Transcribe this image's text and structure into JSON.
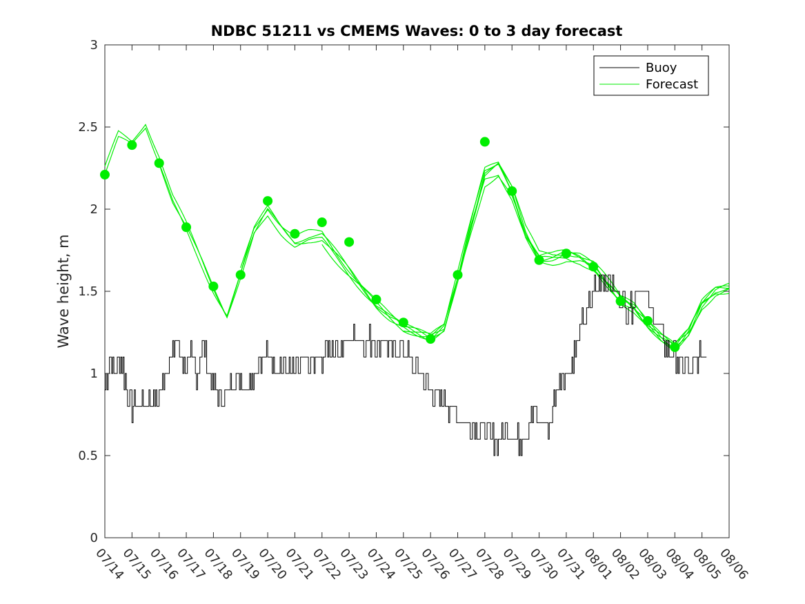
{
  "chart_data": {
    "type": "line",
    "title": "NDBC 51211 vs CMEMS Waves: 0 to 3 day forecast",
    "ylabel": "Wave height, m",
    "xlabel": "",
    "ylim": [
      0,
      3
    ],
    "yticks": [
      "0",
      "0.5",
      "1",
      "1.5",
      "2",
      "2.5",
      "3"
    ],
    "xticks": [
      "07/14",
      "07/15",
      "07/16",
      "07/17",
      "07/18",
      "07/19",
      "07/20",
      "07/21",
      "07/22",
      "07/23",
      "07/24",
      "07/25",
      "07/26",
      "07/27",
      "07/28",
      "07/29",
      "07/30",
      "07/31",
      "08/01",
      "08/02",
      "08/03",
      "08/04",
      "08/05",
      "08/06"
    ],
    "xlim_days": [
      0,
      23
    ],
    "grid": false,
    "legend_position": "top-right",
    "colors": {
      "buoy": "#000000",
      "forecast": "#00ee00"
    },
    "series": [
      {
        "name": "Buoy",
        "x": [
          0,
          0.2,
          0.4,
          0.6,
          0.8,
          1.0,
          1.2,
          1.4,
          1.6,
          1.8,
          2.0,
          2.2,
          2.4,
          2.6,
          2.8,
          3.0,
          3.2,
          3.4,
          3.6,
          3.8,
          4.0,
          4.2,
          4.4,
          4.6,
          4.8,
          5.0,
          5.2,
          5.4,
          5.6,
          5.8,
          6.0,
          6.3,
          6.6,
          7.0,
          7.3,
          7.6,
          8.0,
          8.3,
          8.6,
          9.0,
          9.3,
          9.6,
          10.0,
          10.3,
          10.6,
          11.0,
          11.3,
          11.6,
          12.0,
          12.3,
          12.6,
          13.0,
          13.3,
          13.6,
          14.0,
          14.2,
          14.4,
          14.6,
          14.8,
          15.0,
          15.2,
          15.4,
          15.6,
          15.8,
          16.0,
          16.2,
          16.4,
          16.6,
          16.8,
          17.0,
          17.2,
          17.4,
          17.6,
          17.8,
          18.0,
          18.2,
          18.4,
          18.6,
          18.8,
          19.0,
          19.2,
          19.4,
          19.6,
          19.8,
          20.0,
          20.2,
          20.4,
          20.6,
          20.8,
          21.0,
          21.2,
          21.4,
          21.6,
          21.8,
          22.0,
          22.2
        ],
        "values": [
          0.9,
          1.1,
          1.0,
          1.1,
          0.9,
          0.8,
          0.8,
          0.8,
          0.85,
          0.8,
          0.85,
          1.0,
          1.1,
          1.2,
          1.1,
          1.05,
          1.1,
          1.0,
          1.2,
          1.0,
          0.9,
          0.9,
          0.85,
          0.9,
          0.95,
          1.0,
          0.9,
          1.0,
          1.05,
          1.1,
          1.1,
          1.05,
          1.05,
          1.0,
          1.05,
          1.05,
          1.1,
          1.15,
          1.15,
          1.2,
          1.25,
          1.2,
          1.2,
          1.2,
          1.1,
          1.15,
          1.05,
          1.0,
          0.9,
          0.85,
          0.8,
          0.75,
          0.7,
          0.7,
          0.65,
          0.6,
          0.6,
          0.6,
          0.65,
          0.65,
          0.6,
          0.6,
          0.7,
          0.75,
          0.7,
          0.7,
          0.65,
          0.9,
          1.0,
          1.0,
          1.05,
          1.2,
          1.3,
          1.4,
          1.5,
          1.55,
          1.6,
          1.55,
          1.5,
          1.45,
          1.4,
          1.4,
          1.5,
          1.55,
          1.4,
          1.35,
          1.3,
          1.2,
          1.15,
          1.1,
          1.05,
          1.05,
          1.0,
          1.05,
          1.15,
          1.1
        ]
      },
      {
        "name": "Forecast",
        "x": [
          0,
          0.5,
          1.0,
          1.5,
          2.0,
          2.5,
          3.0,
          3.5,
          4.0,
          4.5,
          5.0,
          5.5,
          6.0,
          6.5,
          7.0,
          7.5,
          8.0,
          8.5,
          9.0,
          9.5,
          10.0,
          10.5,
          11.0,
          11.5,
          12.0,
          12.5,
          13.0,
          13.5,
          14.0,
          14.5,
          15.0,
          15.5,
          16.0,
          16.5,
          17.0,
          17.5,
          18.0,
          18.5,
          19.0,
          19.5,
          20.0,
          20.5,
          21.0,
          21.5,
          22.0,
          22.5,
          23.0
        ],
        "values": [
          2.21,
          2.42,
          2.38,
          2.5,
          2.3,
          2.05,
          1.88,
          1.7,
          1.52,
          1.36,
          1.6,
          1.85,
          1.98,
          1.88,
          1.8,
          1.82,
          1.82,
          1.72,
          1.62,
          1.52,
          1.42,
          1.34,
          1.28,
          1.25,
          1.22,
          1.28,
          1.58,
          1.9,
          2.2,
          2.25,
          2.1,
          1.85,
          1.7,
          1.7,
          1.72,
          1.7,
          1.65,
          1.55,
          1.45,
          1.4,
          1.3,
          1.22,
          1.16,
          1.25,
          1.42,
          1.5,
          1.52
        ]
      }
    ],
    "forecast_markers": {
      "x": [
        0,
        1,
        2,
        3,
        4,
        5,
        6,
        7,
        8,
        9,
        10,
        11,
        12,
        13,
        14,
        15,
        16,
        17,
        18,
        19,
        20,
        21
      ],
      "values": [
        2.21,
        2.39,
        2.28,
        1.89,
        1.53,
        1.6,
        2.05,
        1.85,
        1.92,
        1.8,
        1.45,
        1.31,
        1.21,
        1.6,
        2.41,
        2.11,
        1.69,
        1.73,
        1.65,
        1.44,
        1.32,
        1.16
      ]
    },
    "legend": {
      "entries": [
        "Buoy",
        "Forecast"
      ]
    }
  }
}
